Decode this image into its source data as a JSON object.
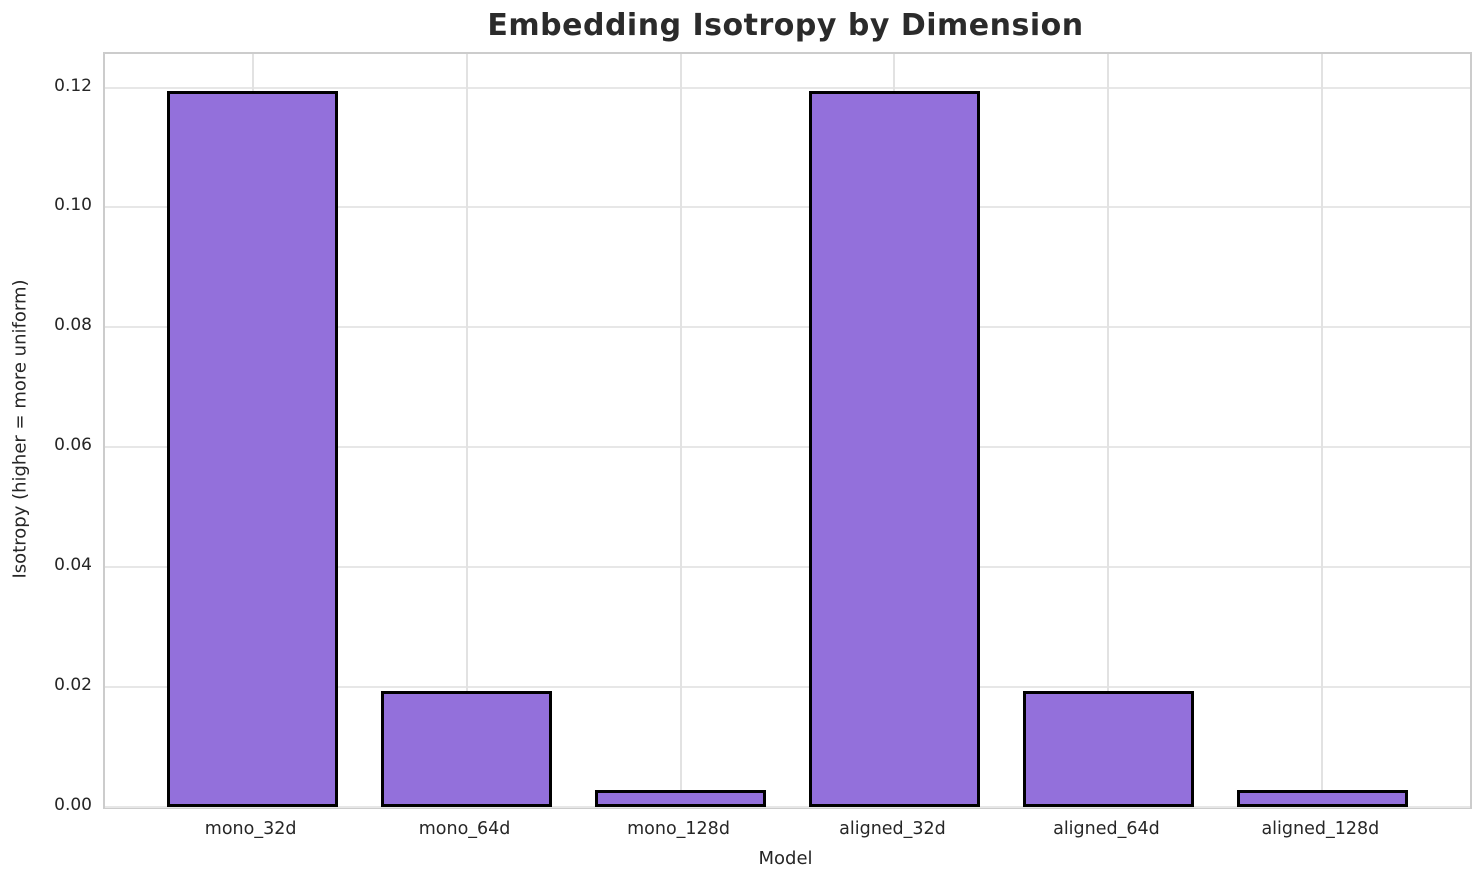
{
  "chart_data": {
    "type": "bar",
    "title": "Embedding Isotropy by Dimension",
    "xlabel": "Model",
    "ylabel": "Isotropy (higher = more uniform)",
    "categories": [
      "mono_32d",
      "mono_64d",
      "mono_128d",
      "aligned_32d",
      "aligned_64d",
      "aligned_128d"
    ],
    "values": [
      0.1195,
      0.0194,
      0.0028,
      0.1195,
      0.0194,
      0.0028
    ],
    "ylim": [
      0,
      0.1256
    ],
    "yticks": [
      0.0,
      0.02,
      0.04,
      0.06,
      0.08,
      0.1,
      0.12
    ],
    "ytick_labels": [
      "0.00",
      "0.02",
      "0.04",
      "0.06",
      "0.08",
      "0.10",
      "0.12"
    ],
    "grid": true,
    "legend": "none",
    "bar_color": "#9370DB",
    "bar_edge_color": "#000000",
    "background_color": "#ffffff",
    "grid_color": "#e7e7e7",
    "text_color": "#262626"
  }
}
